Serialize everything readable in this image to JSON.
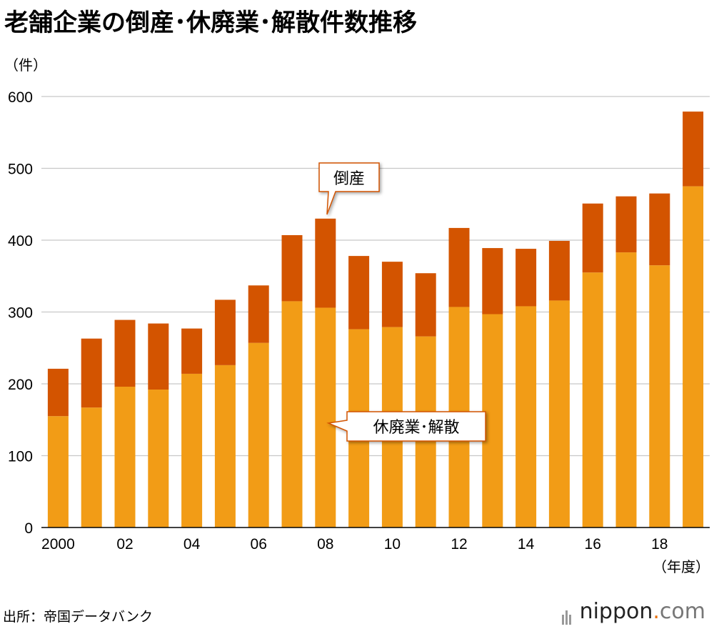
{
  "title": "老舗企業の倒産･休廃業･解散件数推移",
  "source": "出所：帝国データバンク",
  "brand": {
    "name": "nippon",
    "dot": ".",
    "tld": "com"
  },
  "colors": {
    "closure": "#f29c16",
    "bankruptcy": "#d35400",
    "grid": "#c8c8c8",
    "callout_border": "#d35400"
  },
  "chart_data": {
    "type": "bar",
    "stacked": true,
    "title": "老舗企業の倒産･休廃業･解散件数推移",
    "ylabel": "（件）",
    "xlabel": "（年度）",
    "ylim": [
      0,
      600
    ],
    "yticks": [
      0,
      100,
      200,
      300,
      400,
      500,
      600
    ],
    "categories": [
      "2000",
      "01",
      "02",
      "03",
      "04",
      "05",
      "06",
      "07",
      "08",
      "09",
      "10",
      "11",
      "12",
      "13",
      "14",
      "15",
      "16",
      "17",
      "18",
      "19"
    ],
    "xtick_labels": [
      "2000",
      "",
      "02",
      "",
      "04",
      "",
      "06",
      "",
      "08",
      "",
      "10",
      "",
      "12",
      "",
      "14",
      "",
      "16",
      "",
      "18",
      ""
    ],
    "series": [
      {
        "name": "休廃業･解散",
        "values": [
          155,
          167,
          196,
          192,
          214,
          226,
          257,
          315,
          306,
          276,
          279,
          266,
          307,
          297,
          308,
          316,
          355,
          383,
          365,
          475
        ]
      },
      {
        "name": "倒産",
        "values": [
          66,
          96,
          93,
          92,
          63,
          91,
          80,
          92,
          124,
          102,
          91,
          88,
          110,
          92,
          80,
          83,
          96,
          78,
          100,
          104
        ]
      }
    ],
    "annotations": [
      {
        "text": "倒産",
        "series": "倒産",
        "category": "08"
      },
      {
        "text": "休廃業･解散",
        "series": "休廃業･解散",
        "category": "08"
      }
    ]
  }
}
